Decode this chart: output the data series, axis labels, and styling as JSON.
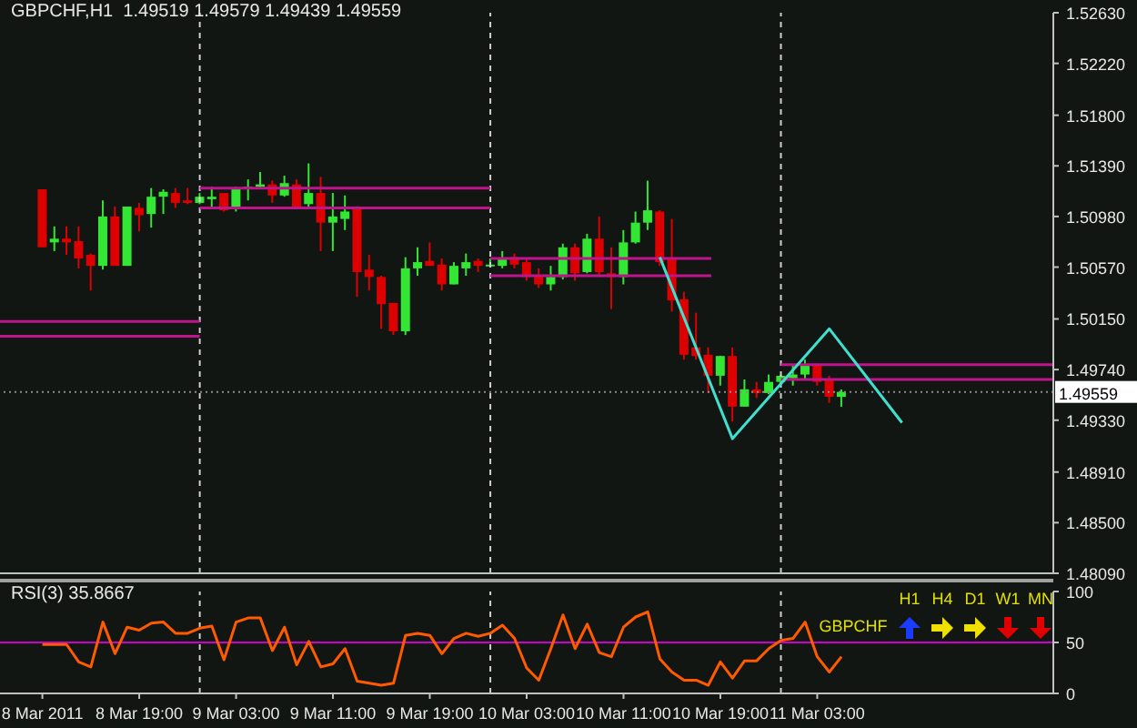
{
  "chart_data": [
    {
      "type": "candlestick",
      "title": "GBPCHF,H1  1.49519 1.49579 1.49439 1.49559",
      "x": [
        "2011-03-08T11:00",
        "2011-03-08T12:00",
        "2011-03-08T13:00",
        "2011-03-08T14:00",
        "2011-03-08T15:00",
        "2011-03-08T16:00",
        "2011-03-08T17:00",
        "2011-03-08T18:00",
        "2011-03-08T19:00",
        "2011-03-08T20:00",
        "2011-03-08T21:00",
        "2011-03-08T22:00",
        "2011-03-08T23:00",
        "2011-03-09T00:00",
        "2011-03-09T01:00",
        "2011-03-09T02:00",
        "2011-03-09T03:00",
        "2011-03-09T04:00",
        "2011-03-09T05:00",
        "2011-03-09T06:00",
        "2011-03-09T07:00",
        "2011-03-09T08:00",
        "2011-03-09T09:00",
        "2011-03-09T10:00",
        "2011-03-09T11:00",
        "2011-03-09T12:00",
        "2011-03-09T13:00",
        "2011-03-09T14:00",
        "2011-03-09T15:00",
        "2011-03-09T16:00",
        "2011-03-09T17:00",
        "2011-03-09T18:00",
        "2011-03-09T19:00",
        "2011-03-09T20:00",
        "2011-03-09T21:00",
        "2011-03-09T22:00",
        "2011-03-09T23:00",
        "2011-03-10T00:00",
        "2011-03-10T01:00",
        "2011-03-10T02:00",
        "2011-03-10T03:00",
        "2011-03-10T04:00",
        "2011-03-10T05:00",
        "2011-03-10T06:00",
        "2011-03-10T07:00",
        "2011-03-10T08:00",
        "2011-03-10T09:00",
        "2011-03-10T10:00",
        "2011-03-10T11:00",
        "2011-03-10T12:00",
        "2011-03-10T13:00",
        "2011-03-10T14:00",
        "2011-03-10T15:00",
        "2011-03-10T16:00",
        "2011-03-10T17:00",
        "2011-03-10T18:00",
        "2011-03-10T19:00",
        "2011-03-10T20:00",
        "2011-03-10T21:00",
        "2011-03-10T22:00",
        "2011-03-10T23:00",
        "2011-03-11T00:00",
        "2011-03-11T01:00",
        "2011-03-11T02:00",
        "2011-03-11T03:00",
        "2011-03-11T04:00",
        "2011-03-11T05:00"
      ],
      "ohlc": [
        [
          1.512,
          1.512,
          1.5073,
          1.5073
        ],
        [
          1.5077,
          1.509,
          1.507,
          1.508
        ],
        [
          1.508,
          1.509,
          1.5067,
          1.5077
        ],
        [
          1.5078,
          1.509,
          1.5056,
          1.5064
        ],
        [
          1.5067,
          1.5068,
          1.5038,
          1.5058
        ],
        [
          1.5058,
          1.5111,
          1.5055,
          1.5098
        ],
        [
          1.5098,
          1.5106,
          1.5058,
          1.5058
        ],
        [
          1.5058,
          1.5106,
          1.5058,
          1.5106
        ],
        [
          1.5105,
          1.5109,
          1.5086,
          1.5099
        ],
        [
          1.51,
          1.5121,
          1.5089,
          1.5114
        ],
        [
          1.5114,
          1.512,
          1.51,
          1.5118
        ],
        [
          1.5117,
          1.5121,
          1.5105,
          1.5109
        ],
        [
          1.5111,
          1.5121,
          1.5108,
          1.5109
        ],
        [
          1.5109,
          1.5117,
          1.5108,
          1.5114
        ],
        [
          1.5112,
          1.5122,
          1.5106,
          1.5114
        ],
        [
          1.5117,
          1.5117,
          1.5102,
          1.5103
        ],
        [
          1.5105,
          1.5122,
          1.5102,
          1.5121
        ],
        [
          1.5121,
          1.5128,
          1.5111,
          1.5122
        ],
        [
          1.5122,
          1.5134,
          1.5121,
          1.5124
        ],
        [
          1.5124,
          1.5127,
          1.5109,
          1.5115
        ],
        [
          1.5115,
          1.5131,
          1.5114,
          1.5125
        ],
        [
          1.5124,
          1.5128,
          1.5105,
          1.5105
        ],
        [
          1.5108,
          1.5141,
          1.5105,
          1.5117
        ],
        [
          1.5117,
          1.513,
          1.507,
          1.5093
        ],
        [
          1.5093,
          1.5117,
          1.507,
          1.5098
        ],
        [
          1.5096,
          1.5115,
          1.5087,
          1.5102
        ],
        [
          1.5106,
          1.5106,
          1.5033,
          1.5053
        ],
        [
          1.5055,
          1.5067,
          1.5038,
          1.5049
        ],
        [
          1.5049,
          1.505,
          1.5007,
          1.5027
        ],
        [
          1.5028,
          1.5028,
          1.5002,
          1.5005
        ],
        [
          1.5005,
          1.5065,
          1.5002,
          1.5056
        ],
        [
          1.5056,
          1.5073,
          1.505,
          1.5061
        ],
        [
          1.5062,
          1.5077,
          1.5058,
          1.5058
        ],
        [
          1.5059,
          1.5064,
          1.5038,
          1.5043
        ],
        [
          1.5043,
          1.5061,
          1.5043,
          1.5058
        ],
        [
          1.5056,
          1.5068,
          1.505,
          1.5061
        ],
        [
          1.5062,
          1.5064,
          1.5053,
          1.5058
        ],
        [
          1.5058,
          1.5064,
          1.5058,
          1.5059
        ],
        [
          1.5058,
          1.507,
          1.5056,
          1.5064
        ],
        [
          1.5065,
          1.5068,
          1.5056,
          1.5059
        ],
        [
          1.5061,
          1.5064,
          1.5046,
          1.5049
        ],
        [
          1.505,
          1.5056,
          1.504,
          1.5043
        ],
        [
          1.5043,
          1.5058,
          1.5038,
          1.5049
        ],
        [
          1.5049,
          1.5076,
          1.5047,
          1.5073
        ],
        [
          1.5073,
          1.5076,
          1.5046,
          1.5052
        ],
        [
          1.5053,
          1.5084,
          1.5052,
          1.508
        ],
        [
          1.508,
          1.5098,
          1.5049,
          1.5053
        ],
        [
          1.5052,
          1.5073,
          1.5023,
          1.5049
        ],
        [
          1.5049,
          1.5087,
          1.5043,
          1.5077
        ],
        [
          1.5077,
          1.5102,
          1.5076,
          1.5093
        ],
        [
          1.5093,
          1.5127,
          1.5087,
          1.5103
        ],
        [
          1.5102,
          1.5103,
          1.5058,
          1.5061
        ],
        [
          1.5064,
          1.5096,
          1.5021,
          1.503
        ],
        [
          1.5031,
          1.5037,
          1.4982,
          1.4986
        ],
        [
          1.4992,
          1.502,
          1.4982,
          1.4985
        ],
        [
          1.4986,
          1.4992,
          1.4955,
          1.4969
        ],
        [
          1.4969,
          1.4985,
          1.4961,
          1.4985
        ],
        [
          1.4985,
          1.4992,
          1.4932,
          1.4944
        ],
        [
          1.4944,
          1.4966,
          1.4944,
          1.4958
        ],
        [
          1.4958,
          1.4964,
          1.4951,
          1.4955
        ],
        [
          1.4955,
          1.497,
          1.4954,
          1.4964
        ],
        [
          1.4964,
          1.497,
          1.4963,
          1.4969
        ],
        [
          1.4967,
          1.4978,
          1.4961,
          1.497
        ],
        [
          1.497,
          1.4982,
          1.4966,
          1.4978
        ],
        [
          1.4978,
          1.4979,
          1.4961,
          1.4964
        ],
        [
          1.4966,
          1.4969,
          1.4947,
          1.4952
        ],
        [
          1.49519,
          1.49579,
          1.49439,
          1.49559
        ]
      ],
      "colors": [
        "#dd0000",
        "#33e633",
        "#dd0000",
        "#dd0000",
        "#dd0000",
        "#33e633",
        "#dd0000",
        "#33e633",
        "#dd0000",
        "#33e633",
        "#33e633",
        "#dd0000",
        "#dd0000",
        "#33e633",
        "#33e633",
        "#dd0000",
        "#33e633",
        "#33e633",
        "#33e633",
        "#dd0000",
        "#33e633",
        "#dd0000",
        "#33e633",
        "#dd0000",
        "#33e633",
        "#33e633",
        "#dd0000",
        "#dd0000",
        "#dd0000",
        "#dd0000",
        "#33e633",
        "#33e633",
        "#dd0000",
        "#dd0000",
        "#33e633",
        "#33e633",
        "#dd0000",
        "#33e633",
        "#33e633",
        "#dd0000",
        "#dd0000",
        "#dd0000",
        "#33e633",
        "#33e633",
        "#dd0000",
        "#33e633",
        "#dd0000",
        "#dd0000",
        "#33e633",
        "#33e633",
        "#33e633",
        "#dd0000",
        "#dd0000",
        "#dd0000",
        "#dd0000",
        "#dd0000",
        "#33e633",
        "#dd0000",
        "#33e633",
        "#dd0000",
        "#33e633",
        "#33e633",
        "#33e633",
        "#33e633",
        "#dd0000",
        "#dd0000",
        "#33e633"
      ],
      "xlim": [
        "2011-03-08T07:30",
        "2011-03-11T22:30"
      ],
      "ylim": [
        1.4809,
        1.5263
      ],
      "yticks": [
        {
          "value": 1.5263,
          "label": "1.52630"
        },
        {
          "value": 1.5222,
          "label": "1.52220"
        },
        {
          "value": 1.518,
          "label": "1.51800"
        },
        {
          "value": 1.5139,
          "label": "1.51390"
        },
        {
          "value": 1.5098,
          "label": "1.50980"
        },
        {
          "value": 1.5057,
          "label": "1.50570"
        },
        {
          "value": 1.5015,
          "label": "1.50150"
        },
        {
          "value": 1.4974,
          "label": "1.49740"
        },
        {
          "value": 1.4933,
          "label": "1.49330"
        },
        {
          "value": 1.4891,
          "label": "1.48910"
        },
        {
          "value": 1.485,
          "label": "1.48500"
        },
        {
          "value": 1.4809,
          "label": "1.48090"
        }
      ],
      "tick_labels": "y",
      "ref_lines": [
        {
          "axis": "x",
          "value": "2011-03-09T00:00",
          "color": "#d0d0d0",
          "line_style": "dashed"
        },
        {
          "axis": "x",
          "value": "2011-03-10T00:00",
          "color": "#d0d0d0",
          "line_style": "dashed"
        },
        {
          "axis": "x",
          "value": "2011-03-11T00:00",
          "color": "#d0d0d0",
          "line_style": "dashed"
        },
        {
          "axis": "y",
          "value": 1.49559,
          "label": "1.49559",
          "color": "#8a8a8a",
          "line_style": "dotted"
        }
      ],
      "series": [
        {
          "type": "line",
          "x": [
            "2011-03-08T07:30",
            "2011-03-09T00:00"
          ],
          "values": [
            1.5013,
            1.5013
          ],
          "color": "#c0148c"
        },
        {
          "type": "line",
          "x": [
            "2011-03-08T07:30",
            "2011-03-09T00:00"
          ],
          "values": [
            1.5001,
            1.5001
          ],
          "color": "#c0148c"
        },
        {
          "type": "line",
          "x": [
            "2011-03-09T00:00",
            "2011-03-10T00:00"
          ],
          "values": [
            1.5121,
            1.5121
          ],
          "color": "#c0148c"
        },
        {
          "type": "line",
          "x": [
            "2011-03-09T00:00",
            "2011-03-10T00:00"
          ],
          "values": [
            1.5105,
            1.5105
          ],
          "color": "#c0148c"
        },
        {
          "type": "line",
          "x": [
            "2011-03-10T00:00",
            "2011-03-10T18:15"
          ],
          "values": [
            1.5064,
            1.5064
          ],
          "color": "#c0148c"
        },
        {
          "type": "line",
          "x": [
            "2011-03-10T00:00",
            "2011-03-10T18:15"
          ],
          "values": [
            1.505,
            1.505
          ],
          "color": "#c0148c"
        },
        {
          "type": "line",
          "x": [
            "2011-03-11T00:00",
            "2011-03-11T22:30"
          ],
          "values": [
            1.4978,
            1.4978
          ],
          "color": "#c0148c"
        },
        {
          "type": "line",
          "x": [
            "2011-03-11T00:00",
            "2011-03-11T22:30"
          ],
          "values": [
            1.4966,
            1.4966
          ],
          "color": "#c0148c"
        },
        {
          "type": "line",
          "x": [
            "2011-03-10T14:00",
            "2011-03-10T20:00",
            "2011-03-11T04:00",
            "2011-03-11T10:00"
          ],
          "values": [
            1.5065,
            1.4918,
            1.5007,
            1.4931
          ],
          "color": "#40e0d0"
        }
      ]
    },
    {
      "type": "line",
      "title": "RSI(3) 35.8667",
      "x": [
        "2011-03-08T11:00",
        "2011-03-08T12:00",
        "2011-03-08T13:00",
        "2011-03-08T14:00",
        "2011-03-08T15:00",
        "2011-03-08T16:00",
        "2011-03-08T17:00",
        "2011-03-08T18:00",
        "2011-03-08T19:00",
        "2011-03-08T20:00",
        "2011-03-08T21:00",
        "2011-03-08T22:00",
        "2011-03-08T23:00",
        "2011-03-09T00:00",
        "2011-03-09T01:00",
        "2011-03-09T02:00",
        "2011-03-09T03:00",
        "2011-03-09T04:00",
        "2011-03-09T05:00",
        "2011-03-09T06:00",
        "2011-03-09T07:00",
        "2011-03-09T08:00",
        "2011-03-09T09:00",
        "2011-03-09T10:00",
        "2011-03-09T11:00",
        "2011-03-09T12:00",
        "2011-03-09T13:00",
        "2011-03-09T14:00",
        "2011-03-09T15:00",
        "2011-03-09T16:00",
        "2011-03-09T17:00",
        "2011-03-09T18:00",
        "2011-03-09T19:00",
        "2011-03-09T20:00",
        "2011-03-09T21:00",
        "2011-03-09T22:00",
        "2011-03-09T23:00",
        "2011-03-10T00:00",
        "2011-03-10T01:00",
        "2011-03-10T02:00",
        "2011-03-10T03:00",
        "2011-03-10T04:00",
        "2011-03-10T05:00",
        "2011-03-10T06:00",
        "2011-03-10T07:00",
        "2011-03-10T08:00",
        "2011-03-10T09:00",
        "2011-03-10T10:00",
        "2011-03-10T11:00",
        "2011-03-10T12:00",
        "2011-03-10T13:00",
        "2011-03-10T14:00",
        "2011-03-10T15:00",
        "2011-03-10T16:00",
        "2011-03-10T17:00",
        "2011-03-10T18:00",
        "2011-03-10T19:00",
        "2011-03-10T20:00",
        "2011-03-10T21:00",
        "2011-03-10T22:00",
        "2011-03-10T23:00",
        "2011-03-11T00:00",
        "2011-03-11T01:00",
        "2011-03-11T02:00",
        "2011-03-11T03:00",
        "2011-03-11T04:00",
        "2011-03-11T05:00"
      ],
      "series": [
        {
          "color": "#ff5a00",
          "values": [
            48,
            48,
            48,
            31,
            26,
            70,
            39,
            65,
            62,
            69,
            70,
            59,
            59,
            64,
            66,
            33,
            70,
            74,
            74,
            42,
            65,
            28,
            51,
            26,
            29,
            44,
            12,
            10,
            8,
            10,
            57,
            59,
            57,
            39,
            54,
            59,
            56,
            59,
            67,
            54,
            25,
            13,
            44,
            77,
            44,
            68,
            40,
            36,
            65,
            75,
            80,
            34,
            21,
            13,
            13,
            8,
            31,
            15,
            32,
            32,
            44,
            52,
            54,
            70,
            36,
            21,
            36
          ]
        }
      ],
      "xlim": [
        "2011-03-08T07:30",
        "2011-03-11T22:30"
      ],
      "xticks": [
        {
          "value": "2011-03-08T11:00",
          "label": "8 Mar 2011"
        },
        {
          "value": "2011-03-08T19:00",
          "label": "8 Mar 19:00"
        },
        {
          "value": "2011-03-09T03:00",
          "label": "9 Mar 03:00"
        },
        {
          "value": "2011-03-09T11:00",
          "label": "9 Mar 11:00"
        },
        {
          "value": "2011-03-09T19:00",
          "label": "9 Mar 19:00"
        },
        {
          "value": "2011-03-10T03:00",
          "label": "10 Mar 03:00"
        },
        {
          "value": "2011-03-10T11:00",
          "label": "10 Mar 11:00"
        },
        {
          "value": "2011-03-10T19:00",
          "label": "10 Mar 19:00"
        },
        {
          "value": "2011-03-11T03:00",
          "label": "11 Mar 03:00"
        }
      ],
      "ylim": [
        0,
        100
      ],
      "yticks": [
        0,
        50,
        100
      ],
      "ref_lines": [
        {
          "axis": "x",
          "value": "2011-03-09T00:00",
          "color": "#d0d0d0",
          "line_style": "dashed"
        },
        {
          "axis": "x",
          "value": "2011-03-10T00:00",
          "color": "#d0d0d0",
          "line_style": "dashed"
        },
        {
          "axis": "x",
          "value": "2011-03-11T00:00",
          "color": "#d0d0d0",
          "line_style": "dashed"
        },
        {
          "axis": "y",
          "value": 50,
          "color": "#cc00cc",
          "line_style": "solid"
        }
      ],
      "annotations": [
        "GBPCHF",
        "H1",
        "H4",
        "D1",
        "W1",
        "MN"
      ]
    }
  ]
}
